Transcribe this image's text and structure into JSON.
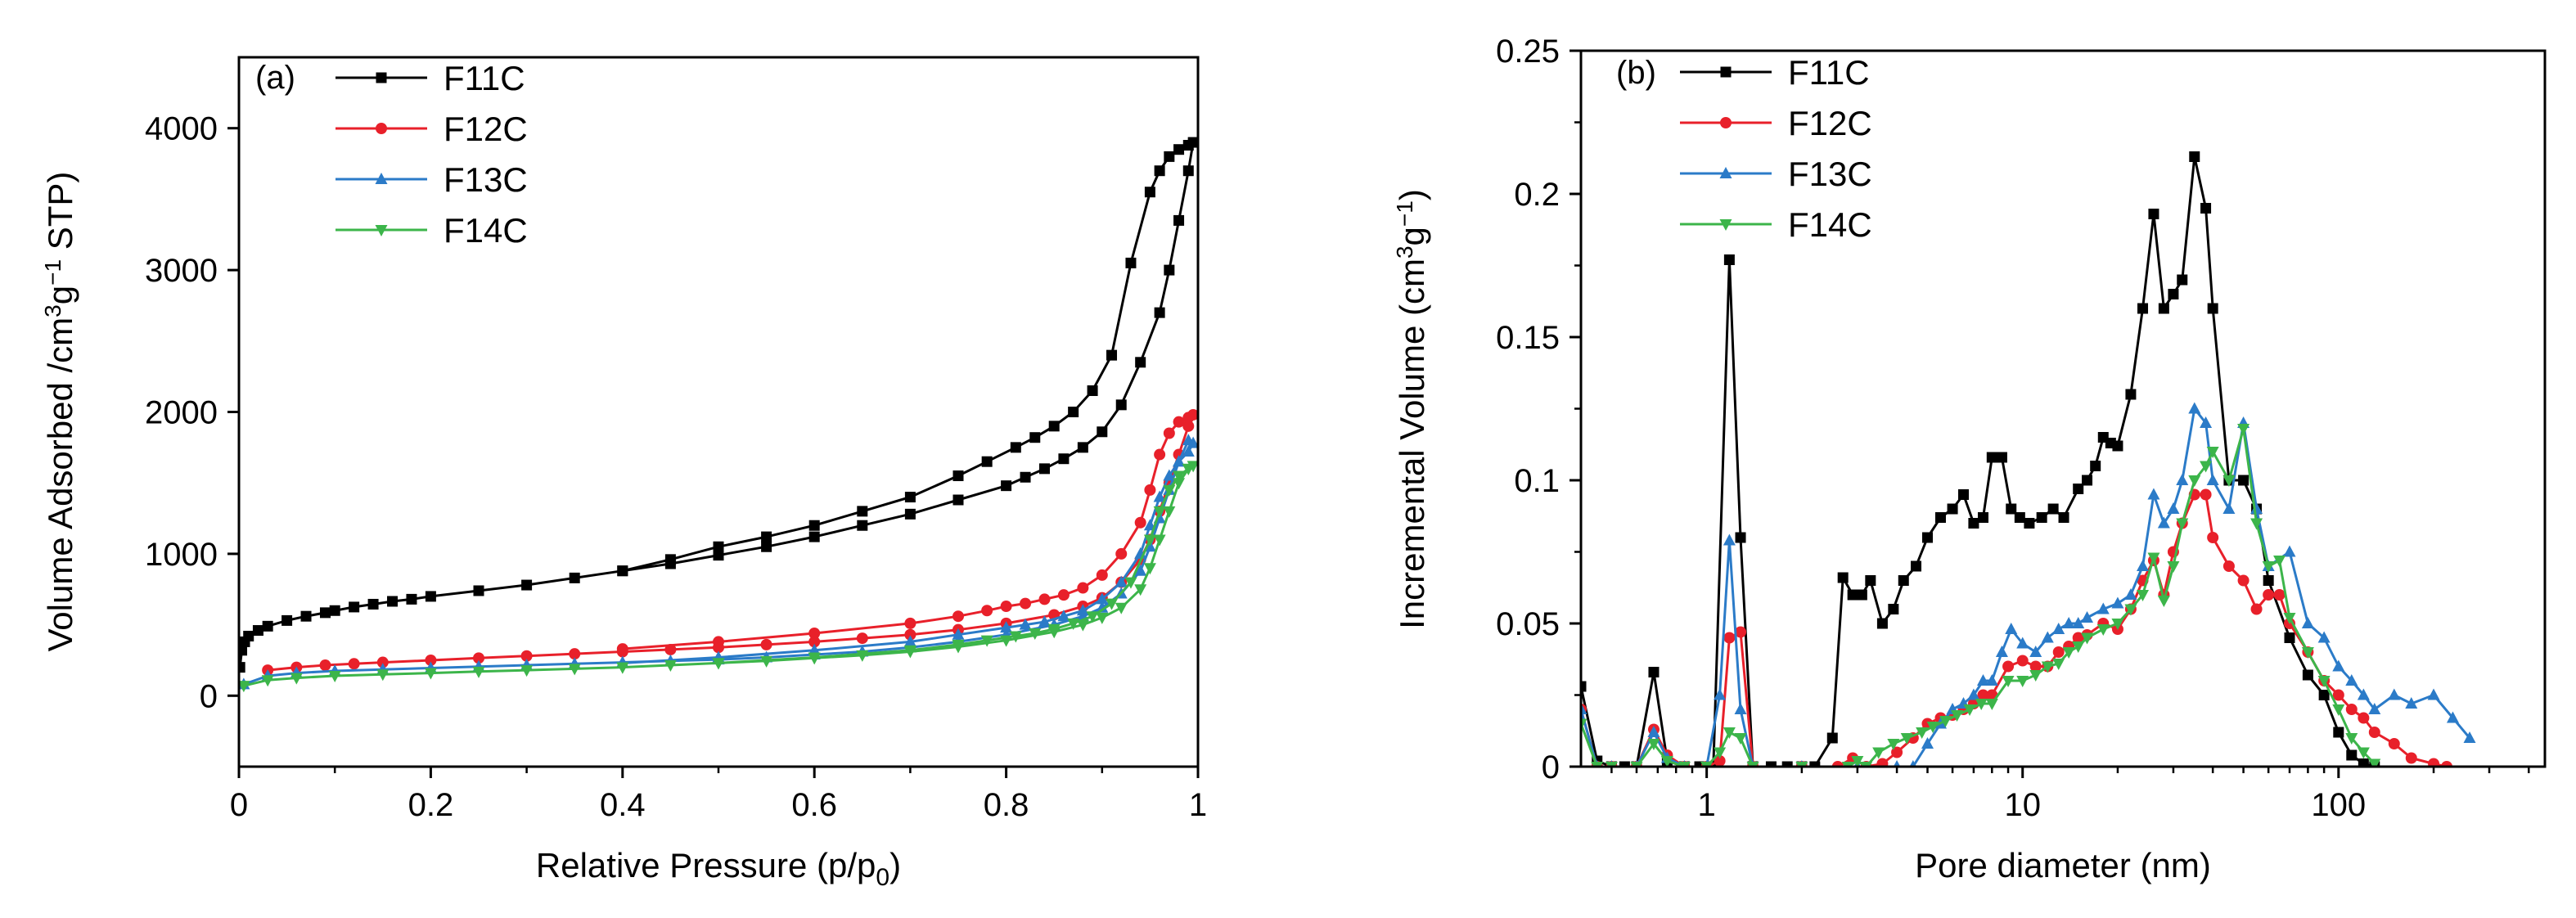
{
  "chart_data": [
    {
      "type": "line",
      "panel_label": "(a)",
      "xlabel": {
        "main": "Relative Pressure (p/p",
        "sub": "0",
        "tail": ")"
      },
      "ylabel": {
        "a": "Volume Adsorbed /cm",
        "sup1": "3",
        "b": "g",
        "sup2": "−1",
        "c": " STP)"
      },
      "xlim": [
        0,
        1
      ],
      "ylim": [
        -500,
        4500
      ],
      "xticks": [
        "0",
        "0.2",
        "0.4",
        "0.6",
        "0.8",
        "1"
      ],
      "xtick_values": [
        0,
        0.2,
        0.4,
        0.6,
        0.8,
        1
      ],
      "yticks": [
        "0",
        "1000",
        "2000",
        "3000",
        "4000"
      ],
      "ytick_values": [
        0,
        1000,
        2000,
        3000,
        4000
      ],
      "legend_position": "top-left",
      "series": [
        {
          "name": "F11C",
          "color": "#000000",
          "marker": "square",
          "x": [
            0.001,
            0.003,
            0.006,
            0.01,
            0.02,
            0.03,
            0.05,
            0.07,
            0.09,
            0.1,
            0.12,
            0.14,
            0.16,
            0.18,
            0.2,
            0.25,
            0.3,
            0.35,
            0.4,
            0.45,
            0.5,
            0.55,
            0.6,
            0.65,
            0.7,
            0.75,
            0.8,
            0.82,
            0.84,
            0.86,
            0.88,
            0.9,
            0.92,
            0.94,
            0.96,
            0.97,
            0.98,
            0.99,
            0.995,
            0.99,
            0.98,
            0.97,
            0.96,
            0.95,
            0.93,
            0.91,
            0.89,
            0.87,
            0.85,
            0.83,
            0.81,
            0.78,
            0.75,
            0.7,
            0.65,
            0.6,
            0.55,
            0.5,
            0.45,
            0.4
          ],
          "y": [
            200,
            320,
            380,
            420,
            460,
            490,
            530,
            560,
            585,
            600,
            625,
            645,
            665,
            680,
            700,
            740,
            780,
            830,
            880,
            930,
            990,
            1050,
            1120,
            1200,
            1280,
            1380,
            1480,
            1540,
            1600,
            1670,
            1750,
            1860,
            2050,
            2350,
            2700,
            3000,
            3350,
            3700,
            3900,
            3880,
            3850,
            3800,
            3700,
            3550,
            3050,
            2400,
            2150,
            2000,
            1900,
            1820,
            1750,
            1650,
            1550,
            1400,
            1300,
            1200,
            1120,
            1050,
            960,
            880
          ]
        },
        {
          "name": "F12C",
          "color": "#e8202a",
          "marker": "circle",
          "x": [
            0.03,
            0.06,
            0.09,
            0.12,
            0.15,
            0.2,
            0.25,
            0.3,
            0.35,
            0.4,
            0.45,
            0.5,
            0.55,
            0.6,
            0.65,
            0.7,
            0.75,
            0.8,
            0.85,
            0.88,
            0.9,
            0.92,
            0.94,
            0.95,
            0.96,
            0.97,
            0.98,
            0.99,
            0.995,
            0.99,
            0.98,
            0.97,
            0.96,
            0.95,
            0.94,
            0.92,
            0.9,
            0.88,
            0.86,
            0.84,
            0.82,
            0.8,
            0.78,
            0.75,
            0.7,
            0.6,
            0.5,
            0.4
          ],
          "y": [
            180,
            200,
            215,
            225,
            235,
            250,
            265,
            280,
            295,
            310,
            325,
            340,
            360,
            380,
            405,
            430,
            465,
            510,
            570,
            630,
            690,
            800,
            960,
            1100,
            1300,
            1500,
            1700,
            1900,
            1980,
            1960,
            1930,
            1850,
            1700,
            1450,
            1220,
            1000,
            850,
            760,
            710,
            680,
            650,
            630,
            600,
            560,
            510,
            440,
            380,
            330
          ]
        },
        {
          "name": "F13C",
          "color": "#2b7bc8",
          "marker": "triangle-up",
          "x": [
            0.005,
            0.03,
            0.06,
            0.1,
            0.15,
            0.2,
            0.25,
            0.3,
            0.35,
            0.4,
            0.45,
            0.5,
            0.55,
            0.6,
            0.65,
            0.7,
            0.75,
            0.8,
            0.85,
            0.88,
            0.9,
            0.92,
            0.94,
            0.95,
            0.96,
            0.97,
            0.98,
            0.99,
            0.995,
            0.99,
            0.98,
            0.97,
            0.96,
            0.95,
            0.94,
            0.92,
            0.9,
            0.88,
            0.86,
            0.84,
            0.82,
            0.8,
            0.75,
            0.7,
            0.6,
            0.5,
            0.4
          ],
          "y": [
            80,
            140,
            160,
            175,
            185,
            195,
            205,
            215,
            225,
            235,
            245,
            255,
            270,
            290,
            310,
            340,
            380,
            430,
            500,
            560,
            620,
            720,
            880,
            1050,
            1250,
            1450,
            1650,
            1800,
            1780,
            1720,
            1650,
            1550,
            1400,
            1200,
            1000,
            800,
            680,
            600,
            560,
            520,
            500,
            480,
            430,
            380,
            320,
            270,
            230
          ]
        },
        {
          "name": "F14C",
          "color": "#3cb54a",
          "marker": "triangle-down",
          "x": [
            0.005,
            0.03,
            0.06,
            0.1,
            0.15,
            0.2,
            0.25,
            0.3,
            0.35,
            0.4,
            0.45,
            0.5,
            0.55,
            0.6,
            0.65,
            0.7,
            0.75,
            0.8,
            0.85,
            0.88,
            0.9,
            0.92,
            0.94,
            0.95,
            0.96,
            0.97,
            0.98,
            0.99,
            0.995,
            0.99,
            0.98,
            0.97,
            0.96,
            0.95,
            0.93,
            0.91,
            0.89,
            0.87,
            0.85,
            0.83,
            0.81,
            0.78,
            0.75,
            0.7,
            0.6,
            0.5,
            0.4
          ],
          "y": [
            70,
            110,
            125,
            140,
            150,
            160,
            170,
            180,
            190,
            200,
            215,
            230,
            245,
            265,
            285,
            310,
            345,
            390,
            450,
            500,
            550,
            620,
            750,
            900,
            1100,
            1300,
            1500,
            1600,
            1620,
            1600,
            1550,
            1450,
            1300,
            1100,
            800,
            650,
            560,
            510,
            470,
            440,
            420,
            390,
            360,
            320,
            270,
            230,
            200
          ]
        }
      ]
    },
    {
      "type": "line",
      "panel_label": "(b)",
      "xlabel": {
        "main": "Pore diameter (nm)"
      },
      "ylabel": {
        "a": "Incremental Volume (cm",
        "sup1": "3",
        "b": "g",
        "sup2": "−1",
        "c": ")"
      },
      "xscale": "log",
      "xlim": [
        0.4,
        450
      ],
      "ylim": [
        0,
        0.25
      ],
      "xticks": [
        "1",
        "10",
        "100"
      ],
      "xtick_values": [
        1,
        10,
        100
      ],
      "yticks": [
        "0",
        "0.05",
        "0.1",
        "0.15",
        "0.2",
        "0.25"
      ],
      "ytick_values": [
        0,
        0.05,
        0.1,
        0.15,
        0.2,
        0.25
      ],
      "legend_position": "top-left",
      "series": [
        {
          "name": "F11C",
          "color": "#000000",
          "marker": "square",
          "x": [
            0.4,
            0.45,
            0.5,
            0.55,
            0.6,
            0.68,
            0.75,
            0.85,
            0.95,
            1.05,
            1.18,
            1.28,
            1.4,
            1.6,
            1.8,
            2.0,
            2.2,
            2.5,
            2.7,
            2.9,
            3.1,
            3.3,
            3.6,
            3.9,
            4.2,
            4.6,
            5.0,
            5.5,
            6.0,
            6.5,
            7.0,
            7.5,
            8.0,
            8.6,
            9.2,
            9.8,
            10.5,
            11.5,
            12.5,
            13.5,
            15,
            16,
            17,
            18,
            19,
            20,
            22,
            24,
            26,
            28,
            30,
            32,
            35,
            38,
            40,
            45,
            50,
            55,
            60,
            70,
            80,
            90,
            100,
            110,
            120,
            130
          ],
          "y": [
            0.028,
            0.002,
            0,
            0,
            0,
            0.033,
            0.002,
            0,
            0,
            0,
            0.177,
            0.08,
            0,
            0,
            0,
            0,
            0,
            0.01,
            0.066,
            0.06,
            0.06,
            0.065,
            0.05,
            0.055,
            0.065,
            0.07,
            0.08,
            0.087,
            0.09,
            0.095,
            0.085,
            0.087,
            0.108,
            0.108,
            0.09,
            0.087,
            0.085,
            0.087,
            0.09,
            0.087,
            0.097,
            0.1,
            0.105,
            0.115,
            0.113,
            0.112,
            0.13,
            0.16,
            0.193,
            0.16,
            0.165,
            0.17,
            0.213,
            0.195,
            0.16,
            0.1,
            0.1,
            0.09,
            0.065,
            0.045,
            0.032,
            0.025,
            0.012,
            0.004,
            0.001,
            0
          ]
        },
        {
          "name": "F12C",
          "color": "#e8202a",
          "marker": "circle",
          "x": [
            0.4,
            0.45,
            0.5,
            0.6,
            0.68,
            0.75,
            0.85,
            1.0,
            1.1,
            1.18,
            1.28,
            1.4,
            2.0,
            2.6,
            2.9,
            3.2,
            3.6,
            4.0,
            4.5,
            5.0,
            5.5,
            6.0,
            6.5,
            7.0,
            7.5,
            8.0,
            9.0,
            10,
            11,
            12,
            13,
            14,
            15,
            16,
            18,
            20,
            22,
            24,
            26,
            28,
            30,
            32,
            35,
            38,
            40,
            45,
            50,
            55,
            60,
            65,
            70,
            80,
            90,
            100,
            110,
            120,
            130,
            150,
            170,
            200,
            220
          ],
          "y": [
            0.02,
            0,
            0,
            0,
            0.013,
            0.004,
            0,
            0,
            0.002,
            0.045,
            0.047,
            0,
            0,
            0,
            0.003,
            0,
            0.001,
            0.005,
            0.01,
            0.015,
            0.017,
            0.018,
            0.02,
            0.022,
            0.025,
            0.025,
            0.035,
            0.037,
            0.035,
            0.035,
            0.04,
            0.042,
            0.045,
            0.046,
            0.05,
            0.048,
            0.055,
            0.065,
            0.072,
            0.06,
            0.075,
            0.085,
            0.095,
            0.095,
            0.08,
            0.07,
            0.065,
            0.055,
            0.06,
            0.06,
            0.05,
            0.04,
            0.03,
            0.025,
            0.02,
            0.017,
            0.012,
            0.008,
            0.003,
            0.001,
            0
          ]
        },
        {
          "name": "F13C",
          "color": "#2b7bc8",
          "marker": "triangle-up",
          "x": [
            0.4,
            0.45,
            0.5,
            0.6,
            0.68,
            0.75,
            0.85,
            1.0,
            1.1,
            1.18,
            1.28,
            1.4,
            2.0,
            3.0,
            4.0,
            4.5,
            5.0,
            5.5,
            6.0,
            6.5,
            7.0,
            7.5,
            8.0,
            8.6,
            9.2,
            10,
            11,
            12,
            13,
            14,
            15,
            16,
            18,
            20,
            22,
            24,
            26,
            28,
            30,
            32,
            35,
            38,
            40,
            45,
            50,
            55,
            60,
            70,
            80,
            90,
            100,
            110,
            120,
            130,
            150,
            170,
            200,
            230,
            260
          ],
          "y": [
            0.02,
            0,
            0,
            0,
            0.012,
            0.003,
            0,
            0,
            0.025,
            0.079,
            0.02,
            0,
            0,
            0,
            0,
            0,
            0.008,
            0.015,
            0.02,
            0.022,
            0.025,
            0.03,
            0.03,
            0.04,
            0.048,
            0.043,
            0.04,
            0.045,
            0.048,
            0.05,
            0.05,
            0.052,
            0.055,
            0.057,
            0.06,
            0.07,
            0.095,
            0.085,
            0.09,
            0.1,
            0.125,
            0.12,
            0.1,
            0.09,
            0.12,
            0.09,
            0.07,
            0.075,
            0.05,
            0.045,
            0.035,
            0.03,
            0.025,
            0.02,
            0.025,
            0.022,
            0.025,
            0.017,
            0.01
          ]
        },
        {
          "name": "F14C",
          "color": "#3cb54a",
          "marker": "triangle-down",
          "x": [
            0.4,
            0.45,
            0.5,
            0.6,
            0.68,
            0.75,
            0.85,
            1.0,
            1.1,
            1.18,
            1.28,
            1.4,
            2.0,
            2.8,
            3.0,
            3.2,
            3.5,
            3.9,
            4.3,
            4.8,
            5.2,
            5.7,
            6.2,
            6.8,
            7.4,
            8.0,
            9.0,
            10,
            11,
            12,
            13,
            14,
            15,
            16,
            18,
            20,
            22,
            24,
            26,
            28,
            30,
            32,
            35,
            38,
            40,
            45,
            50,
            55,
            60,
            65,
            70,
            80,
            90,
            100,
            110,
            120,
            130
          ],
          "y": [
            0.015,
            0,
            0,
            0,
            0.008,
            0.002,
            0,
            0,
            0.005,
            0.012,
            0.01,
            0,
            0,
            0,
            0.002,
            0,
            0.005,
            0.008,
            0.01,
            0.012,
            0.014,
            0.016,
            0.018,
            0.02,
            0.022,
            0.022,
            0.03,
            0.03,
            0.032,
            0.035,
            0.036,
            0.04,
            0.042,
            0.045,
            0.048,
            0.05,
            0.055,
            0.06,
            0.073,
            0.058,
            0.07,
            0.085,
            0.1,
            0.105,
            0.11,
            0.1,
            0.118,
            0.085,
            0.07,
            0.072,
            0.052,
            0.04,
            0.03,
            0.02,
            0.01,
            0.005,
            0.001
          ]
        }
      ]
    }
  ]
}
